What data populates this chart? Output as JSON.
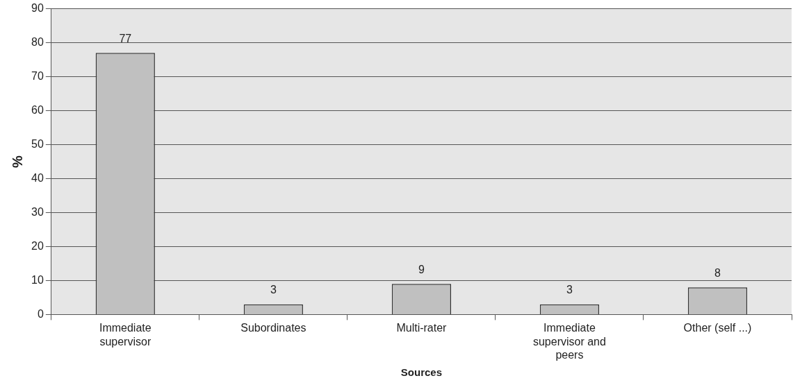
{
  "chart_data": {
    "type": "bar",
    "xlabel": "Sources",
    "ylabel": "%",
    "categories": [
      "Immediate supervisor",
      "Subordinates",
      "Multi-rater",
      "Immediate supervisor and peers",
      "Other (self ...)"
    ],
    "values": [
      77,
      3,
      9,
      3,
      8
    ],
    "color": "#c0c0c0",
    "ylim": [
      0,
      90
    ],
    "yticks": [
      0,
      10,
      20,
      30,
      40,
      50,
      60,
      70,
      80,
      90
    ],
    "grid": "y",
    "data_labels": true,
    "legend": false
  }
}
